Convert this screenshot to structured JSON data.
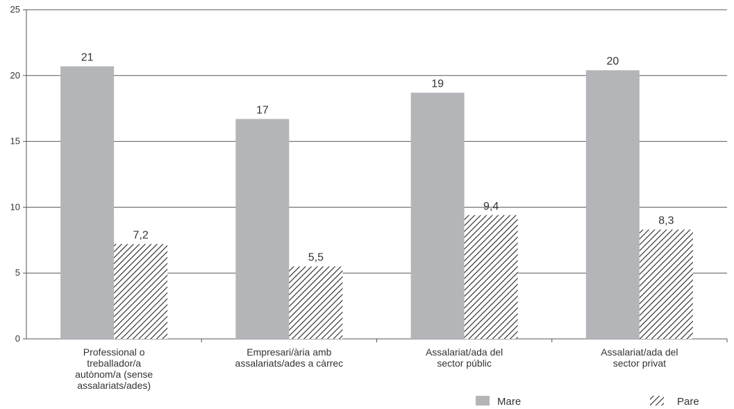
{
  "chart_data": {
    "type": "bar",
    "categories": [
      [
        "Professional o",
        "treballador/a",
        "autònom/a (sense",
        "assalariats/ades)"
      ],
      [
        "Empresari/ària amb",
        "assalariats/ades a càrrec"
      ],
      [
        "Assalariat/ada del",
        "sector públic"
      ],
      [
        "Assalariat/ada del",
        "sector privat"
      ]
    ],
    "series": [
      {
        "name": "Mare",
        "values": [
          20.7,
          16.7,
          18.7,
          20.4
        ],
        "labels": [
          "21",
          "17",
          "19",
          "20"
        ],
        "color": "#b4b5b8",
        "fill": "solid"
      },
      {
        "name": "Pare",
        "values": [
          7.2,
          5.5,
          9.4,
          8.3
        ],
        "labels": [
          "7,2",
          "5,5",
          "9,4",
          "8,3"
        ],
        "color": "#222222",
        "fill": "hatched"
      }
    ],
    "ylim": [
      0,
      25
    ],
    "yticks": [
      "0",
      "5",
      "10",
      "15",
      "20",
      "25"
    ],
    "title": "",
    "xlabel": "",
    "ylabel": "",
    "grid": true,
    "legend_position": "bottom-right"
  }
}
